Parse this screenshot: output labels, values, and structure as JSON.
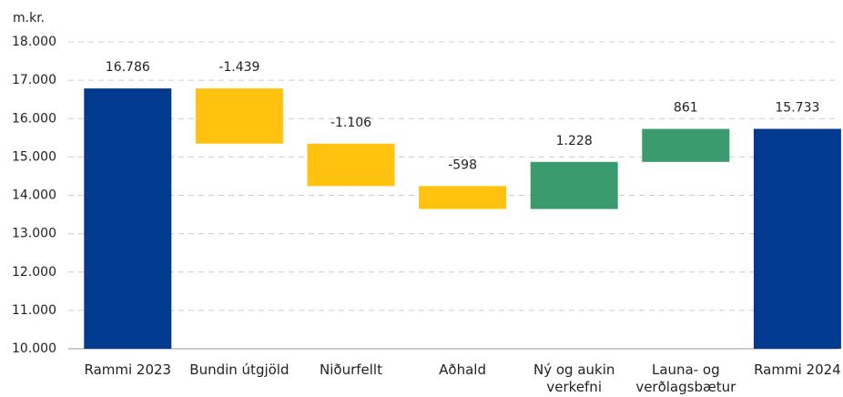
{
  "chart_data": {
    "type": "waterfall",
    "y_label": "m.kr.",
    "categories": [
      "Rammi 2023",
      "Bundin útgjöld",
      "Niðurfellt",
      "Aðhald",
      "Ný og aukin verkefni",
      "Launa- og verðlagsbætur",
      "Rammi 2024"
    ],
    "values": [
      16786,
      -1439,
      -1106,
      -598,
      1228,
      861,
      15733
    ],
    "value_labels": [
      "16.786",
      "-1.439",
      "-1.106",
      "-598",
      "1.228",
      "861",
      "15.733"
    ],
    "measures": [
      "total",
      "relative",
      "relative",
      "relative",
      "relative",
      "relative",
      "total"
    ],
    "colors": {
      "total": "#023a8f",
      "increase": "#3a9b6e",
      "decrease": "#ffc20e"
    },
    "ylim": [
      10000,
      18000
    ],
    "yticks": [
      {
        "value": 10000,
        "label": "10.000"
      },
      {
        "value": 11000,
        "label": "11.000"
      },
      {
        "value": 12000,
        "label": "12.000"
      },
      {
        "value": 13000,
        "label": "13.000"
      },
      {
        "value": 14000,
        "label": "14.000"
      },
      {
        "value": 15000,
        "label": "15.000"
      },
      {
        "value": 16000,
        "label": "16.000"
      },
      {
        "value": 17000,
        "label": "17.000"
      },
      {
        "value": 18000,
        "label": "18.000"
      }
    ],
    "grid": true
  }
}
